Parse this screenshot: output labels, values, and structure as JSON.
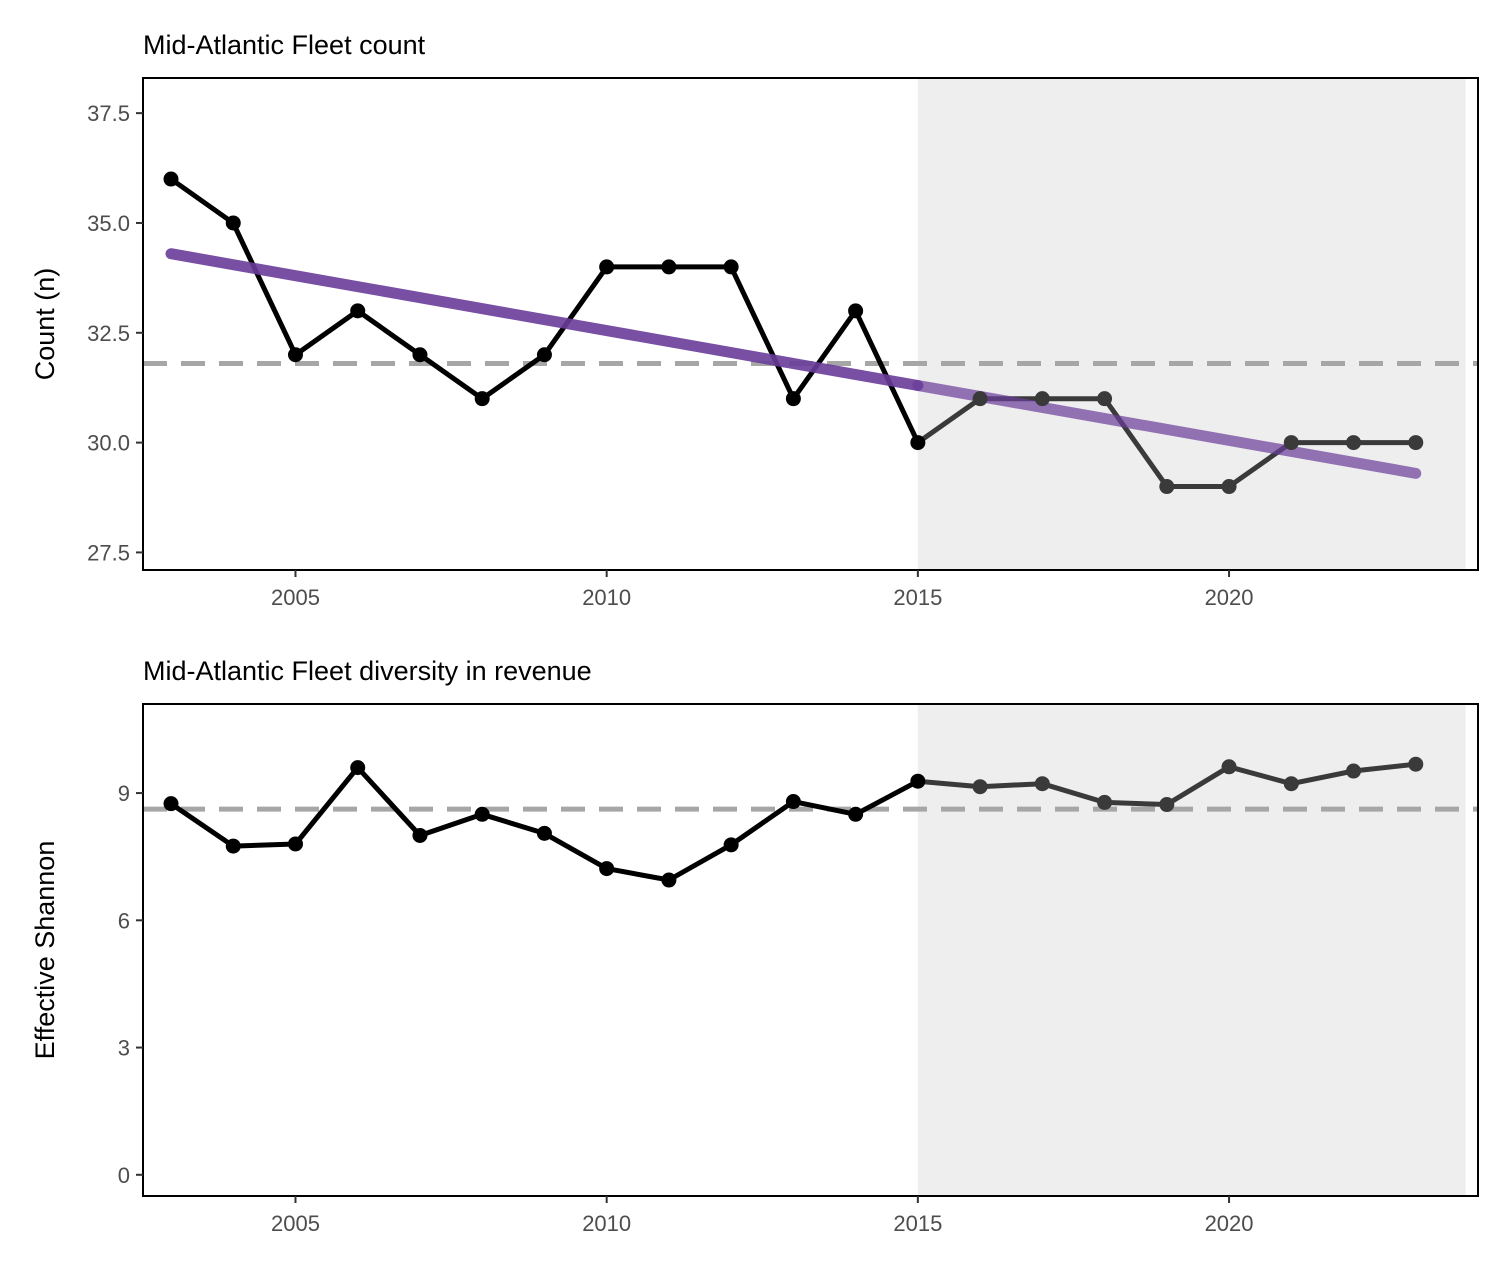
{
  "chart_data": [
    {
      "type": "line",
      "title": "Mid-Atlantic Fleet count",
      "xlabel": "",
      "ylabel": "Count (n)",
      "xlim": [
        2002.55,
        2024.0
      ],
      "ylim": [
        27.1,
        38.3
      ],
      "xticks": [
        2005,
        2010,
        2015,
        2020
      ],
      "xtick_labels": [
        "2005",
        "2010",
        "2015",
        "2020"
      ],
      "yticks": [
        27.5,
        30.0,
        32.5,
        35.0,
        37.5
      ],
      "ytick_labels": [
        "27.5",
        "30.0",
        "32.5",
        "35.0",
        "37.5"
      ],
      "grid": false,
      "shaded_region": {
        "x_start": 2015,
        "x_end": 2023.8,
        "color": "#eeeeee"
      },
      "reference_line": {
        "y": 31.8,
        "style": "dashed",
        "color": "#a6a6a6"
      },
      "trend_line": {
        "x": [
          2003,
          2023
        ],
        "y": [
          34.3,
          29.3
        ],
        "color": "#6a3d9a"
      },
      "series": [
        {
          "x": [
            2003,
            2004,
            2005,
            2006,
            2007,
            2008,
            2009,
            2010,
            2011,
            2012,
            2013,
            2014,
            2015,
            2016,
            2017,
            2018,
            2019,
            2020,
            2021,
            2022,
            2023
          ],
          "values": [
            36,
            35,
            32,
            33,
            32,
            31,
            32,
            34,
            34,
            34,
            31,
            33,
            30,
            31,
            31,
            31,
            29,
            29,
            30,
            30,
            30
          ]
        }
      ],
      "colors": {
        "line": "#000000",
        "recent_line": "#3a3a3a",
        "shade": "#eeeeee",
        "dashed": "#a6a6a6",
        "trend": "#6a3d9a"
      }
    },
    {
      "type": "line",
      "title": "Mid-Atlantic Fleet diversity in revenue",
      "xlabel": "",
      "ylabel": "Effective Shannon",
      "xlim": [
        2002.55,
        2024.0
      ],
      "ylim": [
        -0.5,
        11.1
      ],
      "xticks": [
        2005,
        2010,
        2015,
        2020
      ],
      "xtick_labels": [
        "2005",
        "2010",
        "2015",
        "2020"
      ],
      "yticks": [
        0,
        3,
        6,
        9
      ],
      "ytick_labels": [
        "0",
        "3",
        "6",
        "9"
      ],
      "grid": false,
      "shaded_region": {
        "x_start": 2015,
        "x_end": 2023.8,
        "color": "#eeeeee"
      },
      "reference_line": {
        "y": 8.62,
        "style": "dashed",
        "color": "#a6a6a6"
      },
      "series": [
        {
          "x": [
            2003,
            2004,
            2005,
            2006,
            2007,
            2008,
            2009,
            2010,
            2011,
            2012,
            2013,
            2014,
            2015,
            2016,
            2017,
            2018,
            2019,
            2020,
            2021,
            2022,
            2023
          ],
          "values": [
            8.75,
            7.75,
            7.8,
            9.6,
            8.0,
            8.5,
            8.05,
            7.22,
            6.95,
            7.78,
            8.8,
            8.5,
            9.28,
            9.15,
            9.22,
            8.78,
            8.73,
            9.62,
            9.22,
            9.52,
            9.68
          ]
        }
      ],
      "colors": {
        "line": "#000000",
        "recent_line": "#3a3a3a",
        "shade": "#eeeeee",
        "dashed": "#a6a6a6"
      }
    }
  ]
}
